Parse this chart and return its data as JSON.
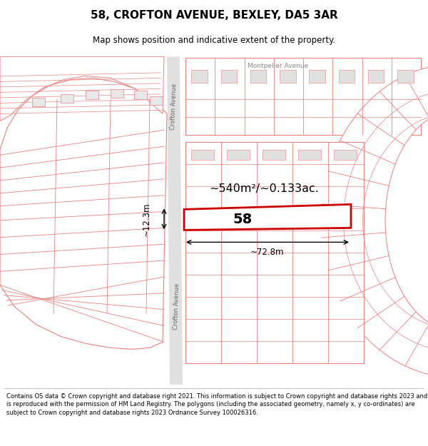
{
  "title": "58, CROFTON AVENUE, BEXLEY, DA5 3AR",
  "subtitle": "Map shows position and indicative extent of the property.",
  "footer": "Contains OS data © Crown copyright and database right 2021. This information is subject to Crown copyright and database rights 2023 and is reproduced with the permission of HM Land Registry. The polygons (including the associated geometry, namely x, y co-ordinates) are subject to Crown copyright and database rights 2023 Ordnance Survey 100026316.",
  "area_label": "~540m²/~0.133ac.",
  "plot_label": "58",
  "dim_width": "~72.8m",
  "dim_height": "~12.3m",
  "street_label_crofton_top": "Crofton Avenue",
  "street_label_crofton_bot": "Crofton Avenue",
  "street_label_montpelier": "Montpelier Avenue",
  "plot_color": "#e88080",
  "highlight_color": "#cc0000",
  "road_color": "#d0d0d0",
  "bg_color": "#f8f8f8",
  "map_bg": "#f0f0f0"
}
